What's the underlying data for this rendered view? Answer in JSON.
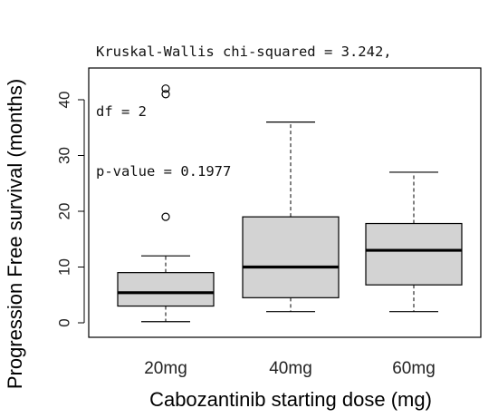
{
  "annotation": [
    "Kruskal-Wallis chi-squared = 3.242,",
    "df = 2",
    "p-value = 0.1977"
  ],
  "chart_data": {
    "type": "boxplot",
    "xlabel": "Cabozantinib starting dose (mg)",
    "ylabel": "Progression Free survival (months)",
    "ylim": [
      -2,
      44
    ],
    "yticks": [
      0,
      10,
      20,
      30,
      40
    ],
    "categories": [
      "20mg",
      "40mg",
      "60mg"
    ],
    "boxes": [
      {
        "category": "20mg",
        "whisker_low": 0.2,
        "q1": 3,
        "median": 5.4,
        "q3": 9,
        "whisker_high": 12,
        "outliers": [
          19,
          41,
          42
        ]
      },
      {
        "category": "40mg",
        "whisker_low": 2,
        "q1": 4.5,
        "median": 10,
        "q3": 19,
        "whisker_high": 36,
        "outliers": []
      },
      {
        "category": "60mg",
        "whisker_low": 2,
        "q1": 6.8,
        "median": 13,
        "q3": 17.8,
        "whisker_high": 27,
        "outliers": []
      }
    ],
    "colors": {
      "box_fill": "#d3d3d3",
      "stroke": "#000000"
    },
    "grid": false
  }
}
